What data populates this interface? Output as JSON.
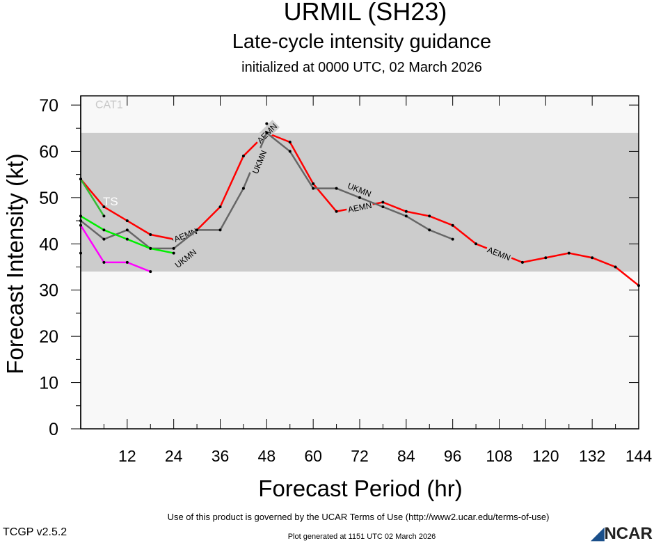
{
  "title": "URMIL (SH23)",
  "subtitle": "Late-cycle intensity guidance",
  "init_line": "initialized at 0000 UTC, 02 March 2026",
  "footer": {
    "terms": "Use of this product is governed by the UCAR Terms of Use (http://www2.ucar.edu/terms-of-use)",
    "generated": "Plot generated at 1151 UTC   02 March 2026",
    "version": "TCGP v2.5.2",
    "logo": "NCAR"
  },
  "chart_data": {
    "type": "line",
    "xlabel": "Forecast Period (hr)",
    "ylabel": "Forecast Intensity (kt)",
    "xlim": [
      0,
      144
    ],
    "ylim": [
      0,
      72
    ],
    "xticks": [
      12,
      24,
      36,
      48,
      60,
      72,
      84,
      96,
      108,
      120,
      132,
      144
    ],
    "yticks": [
      0,
      10,
      20,
      30,
      40,
      50,
      60,
      70
    ],
    "bands": [
      {
        "label": "TS",
        "from": 34,
        "to": 64,
        "color": "#cccccc"
      },
      {
        "label": "CAT1",
        "from": 64,
        "to": 72,
        "color": "#f8f8f8"
      }
    ],
    "series": [
      {
        "name": "AEMN",
        "color": "#ff0000",
        "x": [
          0,
          6,
          12,
          18,
          24,
          30,
          36,
          42,
          48,
          54,
          60,
          66,
          72,
          78,
          84,
          90,
          96,
          102,
          108,
          114,
          120,
          126,
          132,
          138,
          144
        ],
        "y": [
          54,
          48,
          45,
          42,
          41,
          43,
          48,
          59,
          64,
          62,
          53,
          47,
          48,
          49,
          47,
          46,
          44,
          40,
          38,
          36,
          37,
          38,
          37,
          35,
          31
        ],
        "labels_at": [
          27,
          48,
          72,
          108
        ]
      },
      {
        "name": "UKMN",
        "color": "#666666",
        "x": [
          0,
          6,
          12,
          18,
          24,
          30,
          36,
          42,
          48,
          54,
          60,
          66,
          72,
          78,
          84,
          90,
          96
        ],
        "y": [
          45,
          41,
          43,
          39,
          39,
          43,
          43,
          52,
          64,
          60,
          52,
          52,
          50,
          48,
          46,
          43,
          41
        ],
        "labels_at": [
          27,
          46,
          72
        ]
      },
      {
        "name": "",
        "color": "#00ee00",
        "x": [
          0,
          6,
          12,
          18,
          24
        ],
        "y": [
          46,
          43,
          41,
          39,
          38
        ]
      },
      {
        "name": "",
        "color": "#33bb33",
        "x": [
          0,
          6
        ],
        "y": [
          54,
          46
        ]
      },
      {
        "name": "",
        "color": "#ff00ff",
        "x": [
          0,
          6,
          12,
          18
        ],
        "y": [
          44,
          36,
          36,
          34
        ]
      },
      {
        "name": "",
        "color": "#000000",
        "x": [
          0,
          48
        ],
        "y": [
          38,
          66
        ],
        "points_only": true
      }
    ]
  }
}
